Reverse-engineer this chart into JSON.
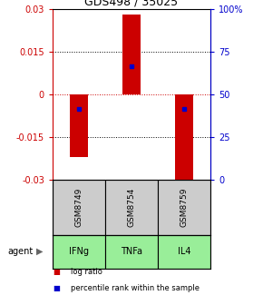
{
  "title": "GDS498 / 35025",
  "samples": [
    "GSM8749",
    "GSM8754",
    "GSM8759"
  ],
  "agents": [
    "IFNg",
    "TNFa",
    "IL4"
  ],
  "log_ratios": [
    -0.022,
    0.028,
    -0.034
  ],
  "percentile_values": [
    -0.005,
    0.01,
    -0.005
  ],
  "ylim_left": [
    -0.03,
    0.03
  ],
  "yticks_left": [
    -0.03,
    -0.015,
    0,
    0.015,
    0.03
  ],
  "yticks_right": [
    0,
    25,
    50,
    75,
    100
  ],
  "bar_color": "#cc0000",
  "dot_color": "#0000cc",
  "zero_line_color": "#cc0000",
  "sample_box_color": "#cccccc",
  "agent_box_color": "#99ee99",
  "left_axis_color": "#cc0000",
  "right_axis_color": "#0000cc",
  "bar_width": 0.35,
  "legend_log_ratio": "log ratio",
  "legend_percentile": "percentile rank within the sample",
  "agent_label": "agent",
  "figsize": [
    2.9,
    3.36
  ],
  "dpi": 100
}
